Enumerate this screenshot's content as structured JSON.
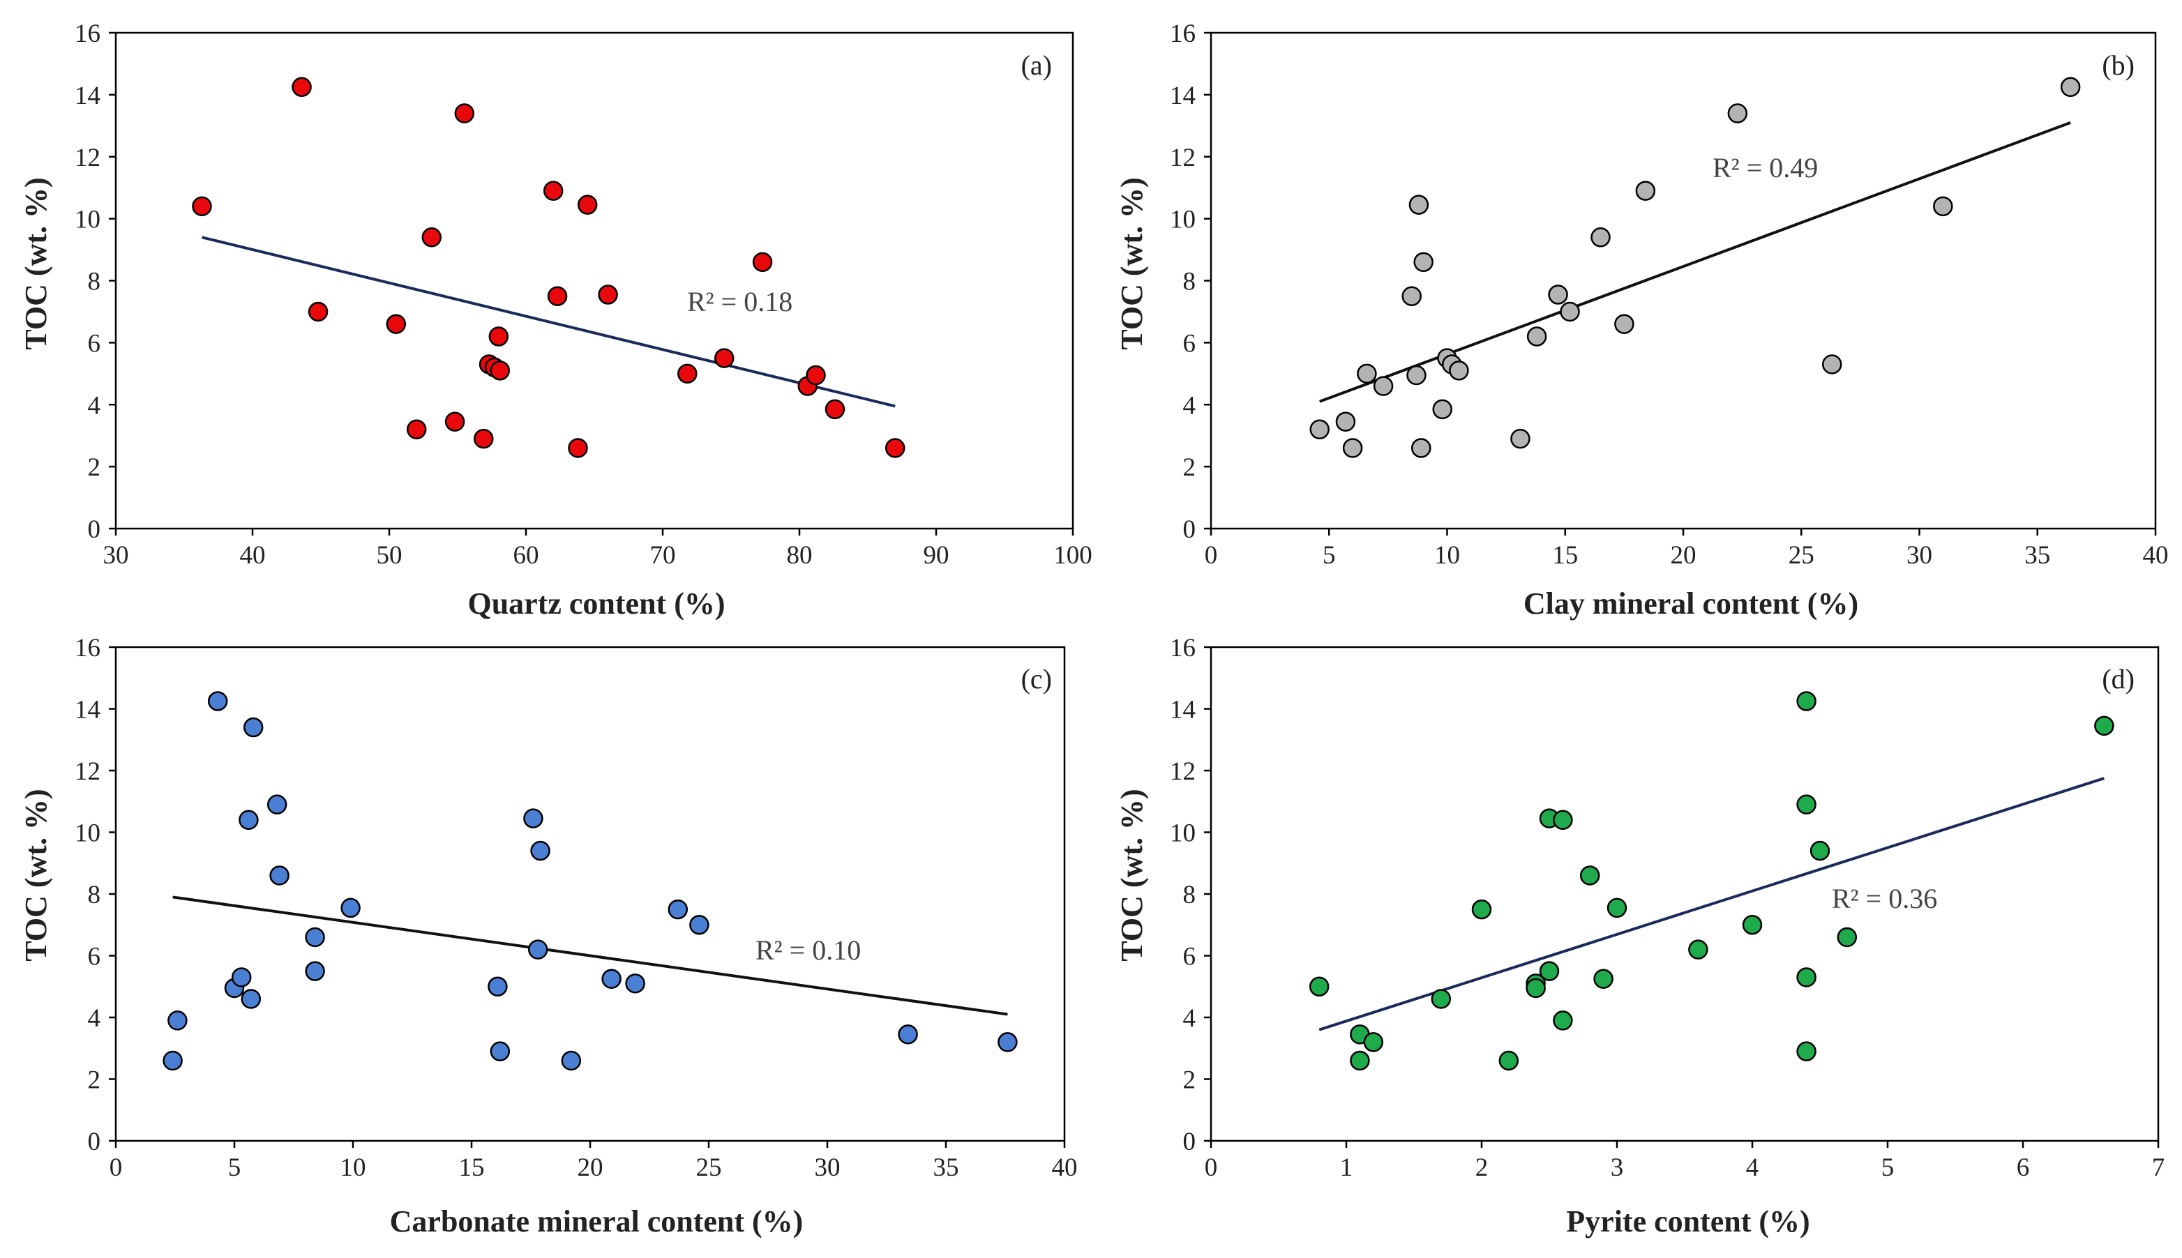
{
  "figure": {
    "y_axis_label": "TOC  (wt. %)",
    "panels": [
      {
        "tag": "(a)",
        "r2_label": "R² = 0.18",
        "chart_data": {
          "type": "scatter",
          "title": "",
          "xlabel": "Quartz content  (%)",
          "ylabel": "TOC  (wt. %)",
          "xlim": [
            30,
            100
          ],
          "ylim": [
            0,
            16
          ],
          "xticks": [
            30,
            40,
            50,
            60,
            70,
            80,
            90,
            100
          ],
          "yticks": [
            0,
            2,
            4,
            6,
            8,
            10,
            12,
            14,
            16
          ],
          "x": [
            36.3,
            43.6,
            44.8,
            50.5,
            52.0,
            53.1,
            54.8,
            55.5,
            56.9,
            57.3,
            57.7,
            58.0,
            58.1,
            62.0,
            62.3,
            63.8,
            64.5,
            66.0,
            71.8,
            74.5,
            77.3,
            80.6,
            81.2,
            82.6,
            87.0
          ],
          "y": [
            10.4,
            14.25,
            7.0,
            6.6,
            3.2,
            9.4,
            3.45,
            13.4,
            2.9,
            5.3,
            5.2,
            6.2,
            5.1,
            10.9,
            7.5,
            2.6,
            10.45,
            7.55,
            5.0,
            5.5,
            8.6,
            4.6,
            4.95,
            3.85,
            2.6
          ],
          "trend": {
            "x": [
              36.3,
              87.0
            ],
            "y": [
              9.4,
              3.95
            ]
          },
          "r2": 0.18,
          "marker_color": "#e8090c",
          "trend_color": "#1a2a5a"
        }
      },
      {
        "tag": "(b)",
        "r2_label": "R² = 0.49",
        "chart_data": {
          "type": "scatter",
          "title": "",
          "xlabel": "Clay mineral content  (%)",
          "ylabel": "TOC  (wt. %)",
          "xlim": [
            0,
            40
          ],
          "ylim": [
            0,
            16
          ],
          "xticks": [
            0,
            5,
            10,
            15,
            20,
            25,
            30,
            35,
            40
          ],
          "yticks": [
            0,
            2,
            4,
            6,
            8,
            10,
            12,
            14,
            16
          ],
          "x": [
            4.6,
            5.7,
            6.0,
            6.6,
            7.3,
            8.5,
            8.7,
            8.8,
            8.9,
            9.0,
            9.8,
            10.0,
            10.2,
            10.5,
            13.1,
            13.8,
            14.7,
            15.2,
            16.5,
            17.5,
            18.4,
            22.3,
            26.3,
            31.0,
            36.4
          ],
          "y": [
            3.2,
            3.45,
            2.6,
            5.0,
            4.6,
            7.5,
            4.95,
            10.45,
            2.6,
            8.6,
            3.85,
            5.5,
            5.3,
            5.1,
            2.9,
            6.2,
            7.55,
            7.0,
            9.4,
            6.6,
            10.9,
            13.4,
            5.3,
            10.4,
            14.25
          ],
          "trend": {
            "x": [
              4.6,
              36.4
            ],
            "y": [
              4.1,
              13.1
            ]
          },
          "r2": 0.49,
          "marker_color": "#b3b3b3",
          "trend_color": "#111111"
        }
      },
      {
        "tag": "(c)",
        "r2_label": "R² = 0.10",
        "chart_data": {
          "type": "scatter",
          "title": "",
          "xlabel": "Carbonate mineral content  (%)",
          "ylabel": "TOC  (wt. %)",
          "xlim": [
            0,
            40
          ],
          "ylim": [
            0,
            16
          ],
          "xticks": [
            0,
            5,
            10,
            15,
            20,
            25,
            30,
            35,
            40
          ],
          "yticks": [
            0,
            2,
            4,
            6,
            8,
            10,
            12,
            14,
            16
          ],
          "x": [
            2.4,
            2.6,
            4.3,
            5.0,
            5.3,
            5.6,
            5.7,
            5.8,
            6.8,
            6.9,
            8.4,
            8.4,
            9.9,
            16.1,
            16.2,
            17.6,
            17.8,
            17.9,
            19.2,
            20.9,
            21.9,
            23.7,
            24.6,
            33.4,
            37.6
          ],
          "y": [
            2.6,
            3.9,
            14.25,
            4.95,
            5.3,
            10.4,
            4.6,
            13.4,
            10.9,
            8.6,
            6.6,
            5.5,
            7.55,
            5.0,
            2.9,
            10.45,
            6.2,
            9.4,
            2.6,
            5.25,
            5.1,
            7.5,
            7.0,
            3.45,
            3.2
          ],
          "trend": {
            "x": [
              2.4,
              37.6
            ],
            "y": [
              7.9,
              4.1
            ]
          },
          "r2": 0.1,
          "marker_color": "#4a7fd3",
          "trend_color": "#111111"
        }
      },
      {
        "tag": "(d)",
        "r2_label": "R² = 0.36",
        "chart_data": {
          "type": "scatter",
          "title": "",
          "xlabel": "Pyrite content (%)",
          "ylabel": "TOC  (wt. %)",
          "xlim": [
            0,
            7
          ],
          "ylim": [
            0,
            16
          ],
          "xticks": [
            0,
            1,
            2,
            3,
            4,
            5,
            6,
            7
          ],
          "yticks": [
            0,
            2,
            4,
            6,
            8,
            10,
            12,
            14,
            16
          ],
          "x": [
            0.8,
            1.1,
            1.1,
            1.2,
            1.7,
            2.0,
            2.2,
            2.4,
            2.4,
            2.5,
            2.5,
            2.6,
            2.6,
            2.8,
            2.9,
            3.0,
            3.6,
            4.0,
            4.4,
            4.4,
            4.4,
            4.4,
            4.5,
            4.7,
            6.6
          ],
          "y": [
            5.0,
            3.45,
            2.6,
            3.2,
            4.6,
            7.5,
            2.6,
            5.1,
            4.95,
            10.45,
            5.5,
            10.4,
            3.9,
            8.6,
            5.25,
            7.55,
            6.2,
            7.0,
            14.25,
            10.9,
            5.3,
            2.9,
            9.4,
            6.6,
            13.45
          ],
          "trend": {
            "x": [
              0.8,
              6.6
            ],
            "y": [
              3.6,
              11.75
            ]
          },
          "r2": 0.36,
          "marker_color": "#1faa4c",
          "trend_color": "#1a2a5a"
        }
      }
    ]
  }
}
